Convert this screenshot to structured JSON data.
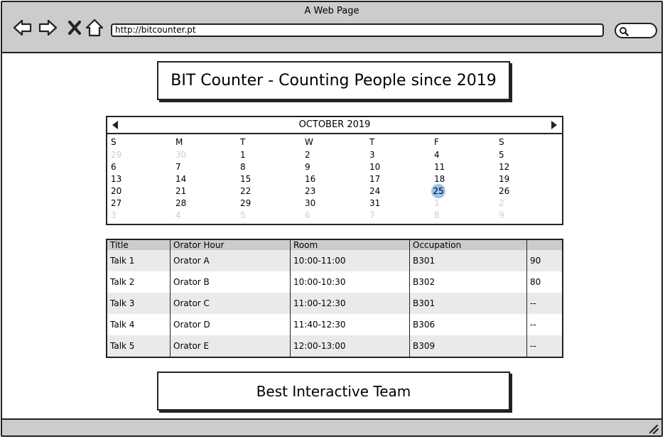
{
  "window": {
    "title": "A Web Page"
  },
  "browser": {
    "url": "http://bitcounter.pt",
    "icons": [
      "back-arrow-icon",
      "forward-arrow-icon",
      "close-icon",
      "home-icon",
      "search-icon",
      "resize-grip-icon"
    ]
  },
  "header": {
    "title": "BIT Counter - Counting People since 2019"
  },
  "calendar": {
    "month_label": "OCTOBER 2019",
    "weekdays": [
      "S",
      "M",
      "T",
      "W",
      "T",
      "F",
      "S"
    ],
    "selected_day": "25",
    "selected_color": "#9fc1ec",
    "weeks": [
      [
        {
          "d": "29",
          "m": true
        },
        {
          "d": "30",
          "m": true
        },
        {
          "d": "1",
          "m": false
        },
        {
          "d": "2",
          "m": false
        },
        {
          "d": "3",
          "m": false
        },
        {
          "d": "4",
          "m": false
        },
        {
          "d": "5",
          "m": false
        }
      ],
      [
        {
          "d": "6",
          "m": false
        },
        {
          "d": "7",
          "m": false
        },
        {
          "d": "8",
          "m": false
        },
        {
          "d": "9",
          "m": false
        },
        {
          "d": "10",
          "m": false
        },
        {
          "d": "11",
          "m": false
        },
        {
          "d": "12",
          "m": false
        }
      ],
      [
        {
          "d": "13",
          "m": false
        },
        {
          "d": "14",
          "m": false
        },
        {
          "d": "15",
          "m": false
        },
        {
          "d": "16",
          "m": false
        },
        {
          "d": "17",
          "m": false
        },
        {
          "d": "18",
          "m": false
        },
        {
          "d": "19",
          "m": false
        }
      ],
      [
        {
          "d": "20",
          "m": false
        },
        {
          "d": "21",
          "m": false
        },
        {
          "d": "22",
          "m": false
        },
        {
          "d": "23",
          "m": false
        },
        {
          "d": "24",
          "m": false
        },
        {
          "d": "25",
          "m": false
        },
        {
          "d": "26",
          "m": false
        }
      ],
      [
        {
          "d": "27",
          "m": false
        },
        {
          "d": "28",
          "m": false
        },
        {
          "d": "29",
          "m": false
        },
        {
          "d": "30",
          "m": false
        },
        {
          "d": "31",
          "m": false
        },
        {
          "d": "1",
          "m": true
        },
        {
          "d": "2",
          "m": true
        }
      ],
      [
        {
          "d": "3",
          "m": true
        },
        {
          "d": "4",
          "m": true
        },
        {
          "d": "5",
          "m": true
        },
        {
          "d": "6",
          "m": true
        },
        {
          "d": "7",
          "m": true
        },
        {
          "d": "8",
          "m": true
        },
        {
          "d": "9",
          "m": true
        }
      ]
    ]
  },
  "table": {
    "columns": [
      "Title",
      "Orator Hour",
      "Room",
      "Occupation",
      ""
    ],
    "rows": [
      [
        "Talk 1",
        "Orator A",
        "10:00-11:00",
        "B301",
        "90"
      ],
      [
        "Talk 2",
        "Orator B",
        "10:00-10:30",
        "B302",
        "80"
      ],
      [
        "Talk 3",
        "Orator C",
        "11:00-12:30",
        "B301",
        "--"
      ],
      [
        "Talk 4",
        "Orator D",
        "11:40-12:30",
        "B306",
        "--"
      ],
      [
        "Talk 5",
        "Orator E",
        "12:00-13:00",
        "B309",
        "--"
      ]
    ]
  },
  "footer": {
    "title": "Best Interactive Team"
  }
}
